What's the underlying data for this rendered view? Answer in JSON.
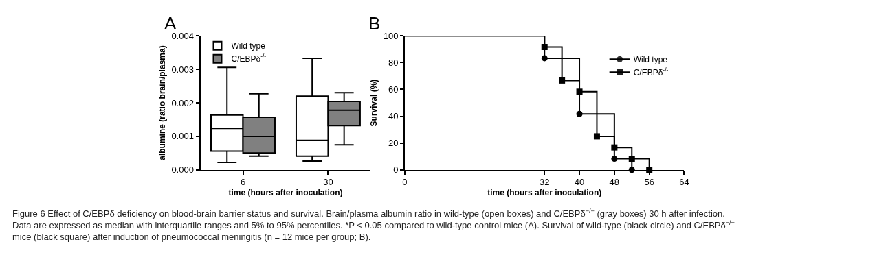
{
  "chart_data": [
    {
      "type": "box",
      "title": "A",
      "xlabel": "time (hours after inoculation)",
      "ylabel": "albumine (ratio brain/plasma)",
      "categories": [
        "6",
        "30"
      ],
      "ylim": [
        0,
        0.004
      ],
      "yticks": [
        {
          "value": 0,
          "label": "0.000"
        },
        {
          "value": 0.001,
          "label": "0.001"
        },
        {
          "value": 0.002,
          "label": "0.002"
        },
        {
          "value": 0.003,
          "label": "0.003"
        },
        {
          "value": 0.004,
          "label": "0.004"
        }
      ],
      "legend": "top left",
      "series": [
        {
          "name": "Wild type",
          "color": "#ffffff",
          "boxes": [
            {
              "low": 0.00022,
              "q1": 0.00056,
              "median": 0.00124,
              "q3": 0.00164,
              "high": 0.00306
            },
            {
              "low": 0.00026,
              "q1": 0.00041,
              "median": 0.00088,
              "q3": 0.0022,
              "high": 0.00333
            }
          ]
        },
        {
          "name": "C/EBPδ$^{-/-}$",
          "color": "#808080",
          "boxes": [
            {
              "low": 0.00041,
              "q1": 0.0005,
              "median": 0.001,
              "q3": 0.00157,
              "high": 0.00227
            },
            {
              "low": 0.00075,
              "q1": 0.00132,
              "median": 0.00178,
              "q3": 0.00204,
              "high": 0.0023
            }
          ]
        }
      ],
      "annotations": [
        "Figure 6 Effect of C/EBPδ deficiency on blood-brain barrier status and survival. Brain/plasma albumin ratio in wild-type (open boxes) and C/EBPδ$^{−/−}$ (gray boxes) 30 h after infection. Data are expressed as median with interquartile ranges and 5% to 95% percentiles. *P < 0.05 compared to wild-type control mice (A). Survival of wild-type (black circle) and C/EBPδ$^{−/−}$ mice (black square) after induction of pneumococcal meningitis (n = 12 mice per group; B)."
      ]
    },
    {
      "type": "step",
      "title": "B",
      "xlabel": "time (hours after inoculation)",
      "ylabel": "Survival (%)",
      "xlim": [
        0,
        64
      ],
      "xticks": [
        0,
        32,
        40,
        48,
        56,
        64
      ],
      "ylim": [
        0,
        100
      ],
      "yticks": [
        0,
        20,
        40,
        60,
        80,
        100
      ],
      "legend": "top right",
      "line_style": "solid",
      "series": [
        {
          "name": "Wild type",
          "color": "#000000",
          "marker": "circle",
          "x": [
            0,
            32,
            40,
            48,
            52
          ],
          "values": [
            100,
            83.3,
            41.7,
            8.3,
            0
          ]
        },
        {
          "name": "C/EBPδ$^{-/-}$",
          "color": "#000000",
          "marker": "square",
          "x": [
            0,
            32,
            36,
            40,
            44,
            48,
            52,
            56
          ],
          "values": [
            100,
            91.7,
            66.7,
            58.3,
            25,
            16.7,
            8.3,
            0
          ]
        }
      ]
    }
  ]
}
